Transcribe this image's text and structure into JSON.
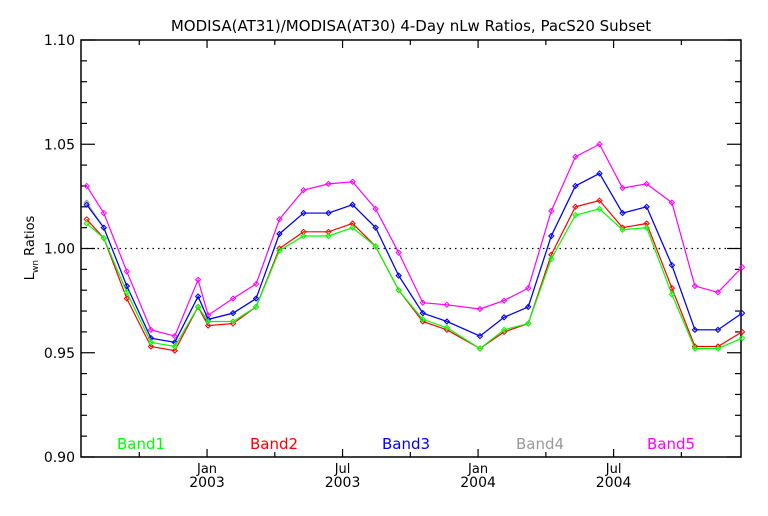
{
  "chart_data": {
    "type": "line",
    "title": "MODISA(AT31)/MODISA(AT30) 4-Day nLw Ratios, PacS20 Subset",
    "xlabel": "",
    "ylabel_main": "L",
    "ylabel_sub": "wn",
    "ylabel_rest": " Ratios",
    "ylim": [
      0.9,
      1.1
    ],
    "xlim": [
      2002.535,
      2004.97
    ],
    "yticks": [
      {
        "value": 0.9,
        "label": "0.90"
      },
      {
        "value": 0.95,
        "label": "0.95"
      },
      {
        "value": 1.0,
        "label": "1.00"
      },
      {
        "value": 1.05,
        "label": "1.05"
      },
      {
        "value": 1.1,
        "label": "1.10"
      }
    ],
    "xticks": [
      {
        "value": 2003.0,
        "month": "Jan",
        "year": "2003"
      },
      {
        "value": 2003.5,
        "month": "Jul",
        "year": "2003"
      },
      {
        "value": 2004.0,
        "month": "Jan",
        "year": "2004"
      },
      {
        "value": 2004.5,
        "month": "Jul",
        "year": "2004"
      }
    ],
    "reference_line": 1.0,
    "legend_placement": "bottom-inside",
    "x": [
      2002.556,
      2002.619,
      2002.704,
      2002.793,
      2002.881,
      2002.967,
      2003.004,
      2003.096,
      2003.181,
      2003.267,
      2003.356,
      2003.448,
      2003.537,
      2003.622,
      2003.707,
      2003.796,
      2003.885,
      2004.007,
      2004.096,
      2004.185,
      2004.27,
      2004.359,
      2004.448,
      2004.533,
      2004.622,
      2004.715,
      2004.8,
      2004.885,
      2004.974
    ],
    "series": [
      {
        "name": "Band1",
        "color": "#00ff00",
        "values": [
          1.012,
          1.005,
          0.979,
          0.955,
          0.953,
          0.972,
          0.965,
          0.965,
          0.972,
          0.999,
          1.006,
          1.006,
          1.01,
          1.001,
          0.98,
          0.966,
          0.962,
          0.952,
          0.961,
          0.964,
          0.995,
          1.016,
          1.019,
          1.009,
          1.01,
          0.978,
          0.952,
          0.952,
          0.957
        ]
      },
      {
        "name": "Band2",
        "color": "#ff0000",
        "values": [
          1.014,
          1.005,
          0.976,
          0.953,
          0.951,
          0.972,
          0.963,
          0.964,
          0.972,
          1.0,
          1.008,
          1.008,
          1.012,
          1.001,
          0.98,
          0.965,
          0.961,
          0.952,
          0.96,
          0.964,
          0.997,
          1.02,
          1.023,
          1.01,
          1.012,
          0.981,
          0.953,
          0.953,
          0.96
        ]
      },
      {
        "name": "Band3",
        "color": "#0000ff",
        "values": [
          1.021,
          1.01,
          0.982,
          0.957,
          0.955,
          0.977,
          0.966,
          0.969,
          0.976,
          1.007,
          1.017,
          1.017,
          1.021,
          1.01,
          0.987,
          0.969,
          0.965,
          0.958,
          0.967,
          0.972,
          1.006,
          1.03,
          1.036,
          1.017,
          1.02,
          0.992,
          0.961,
          0.961,
          0.969
        ]
      },
      {
        "name": "Band4",
        "color": "#999999",
        "values": [
          1.022,
          1.01,
          0.982,
          0.957,
          0.955,
          0.977,
          0.966,
          0.969,
          0.976,
          1.007,
          1.017,
          1.017,
          1.021,
          1.01,
          0.987,
          0.969,
          0.965,
          0.958,
          0.967,
          0.972,
          1.006,
          1.03,
          1.036,
          1.017,
          1.02,
          0.992,
          0.961,
          0.961,
          0.969
        ]
      },
      {
        "name": "Band5",
        "color": "#ff00ff",
        "values": [
          1.03,
          1.017,
          0.989,
          0.961,
          0.958,
          0.985,
          0.968,
          0.976,
          0.983,
          1.014,
          1.028,
          1.031,
          1.032,
          1.019,
          0.998,
          0.974,
          0.973,
          0.971,
          0.975,
          0.981,
          1.018,
          1.044,
          1.05,
          1.029,
          1.031,
          1.022,
          0.982,
          0.979,
          0.991
        ]
      }
    ]
  }
}
